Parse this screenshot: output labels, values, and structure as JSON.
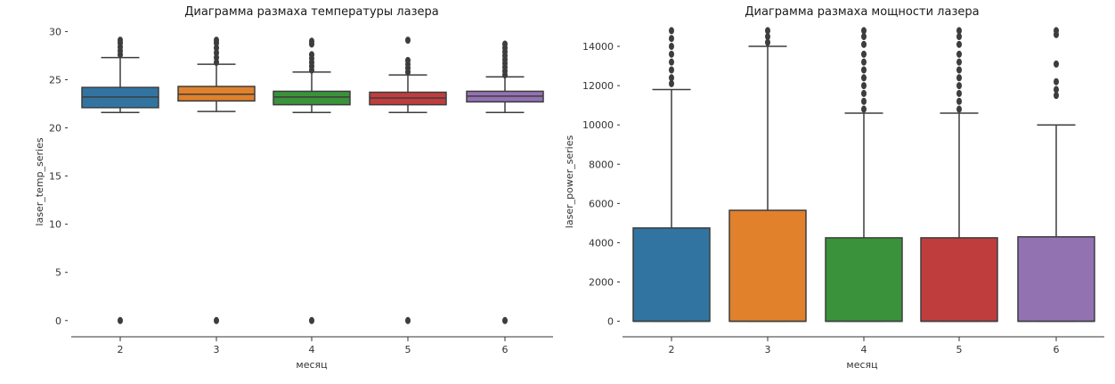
{
  "colors": {
    "2": "#3274a1",
    "3": "#e1812c",
    "4": "#3a923a",
    "5": "#c03d3e",
    "6": "#9372b2",
    "median": "#3d3d3d"
  },
  "chart_data": [
    {
      "type": "box",
      "title": "Диаграмма размаха температуры лазера",
      "xlabel": "месяц",
      "ylabel": "laser_temp_series",
      "categories": [
        "2",
        "3",
        "4",
        "5",
        "6"
      ],
      "ylim": [
        -1.5,
        30.5
      ],
      "yticks": [
        "0",
        "5",
        "10",
        "15",
        "20",
        "25",
        "30"
      ],
      "grid": false,
      "boxes": [
        {
          "whislo": 21.6,
          "q1": 22.1,
          "med": 23.2,
          "q3": 24.2,
          "whishi": 27.3,
          "fliers": [
            0,
            27.6,
            28.0,
            28.4,
            28.8,
            29.1
          ]
        },
        {
          "whislo": 21.7,
          "q1": 22.8,
          "med": 23.5,
          "q3": 24.3,
          "whishi": 26.6,
          "fliers": [
            0,
            26.8,
            27.3,
            27.8,
            28.3,
            28.8,
            29.1
          ]
        },
        {
          "whislo": 21.6,
          "q1": 22.4,
          "med": 23.2,
          "q3": 23.8,
          "whishi": 25.8,
          "fliers": [
            0,
            26.0,
            26.4,
            26.8,
            27.2,
            27.6,
            28.7,
            29.0
          ]
        },
        {
          "whislo": 21.6,
          "q1": 22.4,
          "med": 23.1,
          "q3": 23.7,
          "whishi": 25.5,
          "fliers": [
            0,
            25.8,
            26.2,
            26.6,
            27.0,
            29.1
          ]
        },
        {
          "whislo": 21.6,
          "q1": 22.7,
          "med": 23.3,
          "q3": 23.8,
          "whishi": 25.3,
          "fliers": [
            0,
            25.5,
            25.9,
            26.3,
            26.7,
            27.1,
            27.5,
            27.9,
            28.3,
            28.7
          ]
        }
      ]
    },
    {
      "type": "box",
      "title": "Диаграмма размаха мощности лазера",
      "xlabel": "месяц",
      "ylabel": "laser_power_series",
      "categories": [
        "2",
        "3",
        "4",
        "5",
        "6"
      ],
      "ylim": [
        -700,
        15000
      ],
      "yticks": [
        "0",
        "2000",
        "4000",
        "6000",
        "8000",
        "10000",
        "12000",
        "14000"
      ],
      "grid": false,
      "boxes": [
        {
          "whislo": 0,
          "q1": 0,
          "med": 0,
          "q3": 4750,
          "whishi": 11800,
          "fliers": [
            12100,
            12400,
            12800,
            13200,
            13600,
            14000,
            14400,
            14800
          ]
        },
        {
          "whislo": 0,
          "q1": 0,
          "med": 0,
          "q3": 5650,
          "whishi": 14000,
          "fliers": [
            14200,
            14500,
            14800
          ]
        },
        {
          "whislo": 0,
          "q1": 0,
          "med": 0,
          "q3": 4250,
          "whishi": 10600,
          "fliers": [
            10800,
            11200,
            11600,
            12000,
            12400,
            12800,
            13200,
            13600,
            14100,
            14500,
            14800
          ]
        },
        {
          "whislo": 0,
          "q1": 0,
          "med": 0,
          "q3": 4250,
          "whishi": 10600,
          "fliers": [
            10800,
            11200,
            11600,
            12000,
            12400,
            12800,
            13200,
            13600,
            14100,
            14500,
            14800
          ]
        },
        {
          "whislo": 0,
          "q1": 0,
          "med": 0,
          "q3": 4300,
          "whishi": 10000,
          "fliers": [
            11500,
            11800,
            12200,
            13100,
            14600,
            14800
          ]
        }
      ]
    }
  ]
}
